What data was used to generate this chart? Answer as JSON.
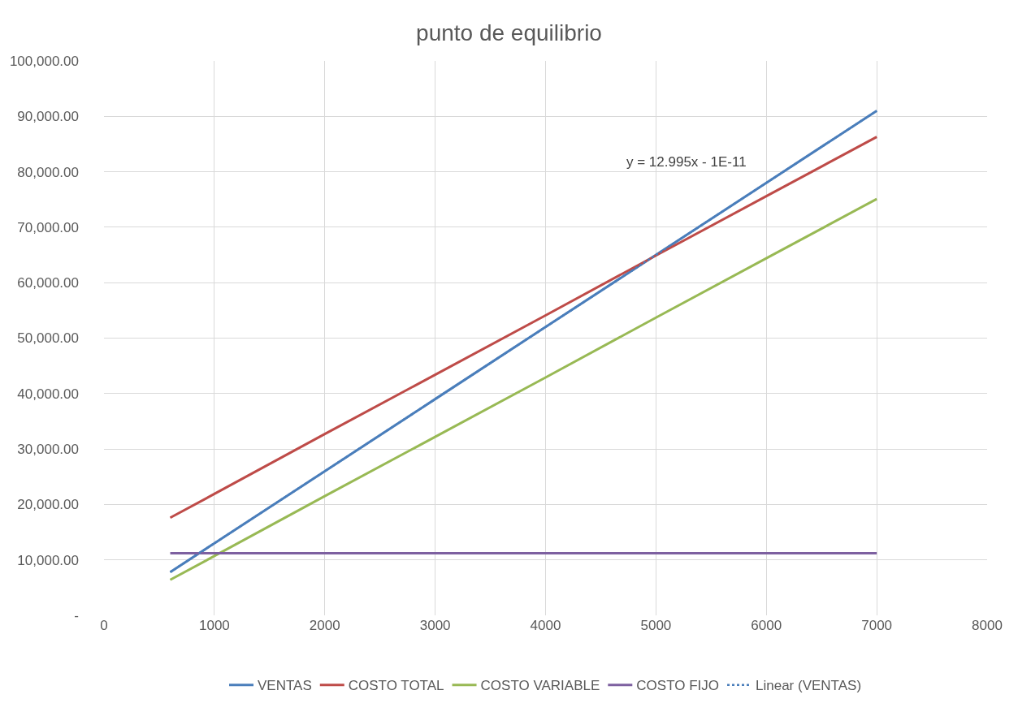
{
  "chart_data": {
    "type": "line",
    "title": "punto de equilibrio",
    "x": [
      600,
      1000,
      2000,
      3000,
      4000,
      5000,
      6000,
      7000
    ],
    "series": [
      {
        "name": "VENTAS",
        "color": "#4a7ebb",
        "values": [
          7800,
          13000,
          26000,
          39000,
          52000,
          65000,
          78000,
          91000
        ]
      },
      {
        "name": "COSTO TOTAL",
        "color": "#be4b48",
        "values": [
          17600,
          21900,
          32700,
          43400,
          54100,
          64900,
          75600,
          86300
        ]
      },
      {
        "name": "COSTO VARIABLE",
        "color": "#98b954",
        "values": [
          6400,
          10700,
          21500,
          32200,
          42900,
          53700,
          64400,
          75100
        ]
      },
      {
        "name": "COSTO FIJO",
        "color": "#7d60a0",
        "values": [
          11200,
          11200,
          11200,
          11200,
          11200,
          11200,
          11200,
          11200
        ]
      },
      {
        "name": "Linear (VENTAS)",
        "color": "#4a7ebb",
        "x": [
          600,
          7000
        ],
        "values": [
          7800,
          91000
        ],
        "line_style": "dotted"
      }
    ],
    "xlim": [
      0,
      8000
    ],
    "xticks": [
      0,
      1000,
      2000,
      3000,
      4000,
      5000,
      6000,
      7000,
      8000
    ],
    "ylim": [
      0,
      100000
    ],
    "yticks": [
      {
        "value": 0,
        "label": "-"
      },
      {
        "value": 10000,
        "label": "10,000.00"
      },
      {
        "value": 20000,
        "label": "20,000.00"
      },
      {
        "value": 30000,
        "label": "30,000.00"
      },
      {
        "value": 40000,
        "label": "40,000.00"
      },
      {
        "value": 50000,
        "label": "50,000.00"
      },
      {
        "value": 60000,
        "label": "60,000.00"
      },
      {
        "value": 70000,
        "label": "70,000.00"
      },
      {
        "value": 80000,
        "label": "80,000.00"
      },
      {
        "value": 90000,
        "label": "90,000.00"
      },
      {
        "value": 100000,
        "label": "100,000.00"
      }
    ],
    "annotations": [
      "y = 12.995x - 1E-11"
    ],
    "grid": true,
    "legend": "bottom",
    "marker": "none",
    "line_style": "solid"
  }
}
